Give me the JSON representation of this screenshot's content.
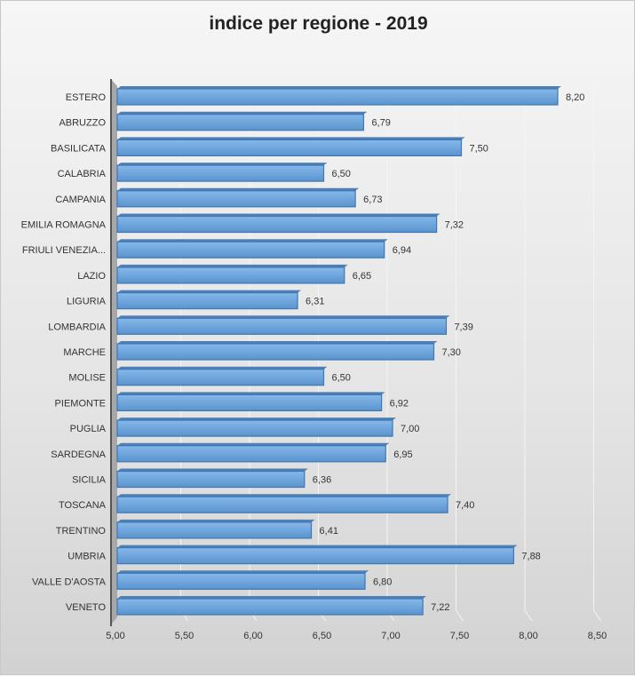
{
  "chart_data": {
    "type": "bar",
    "orientation": "horizontal",
    "title": "indice per regione - 2019",
    "xlabel": "",
    "ylabel": "",
    "xlim": [
      5.0,
      8.5
    ],
    "xticks": [
      "5,00",
      "5,50",
      "6,00",
      "6,50",
      "7,00",
      "7,50",
      "8,00",
      "8,50"
    ],
    "grid": true,
    "categories": [
      "ESTERO",
      "ABRUZZO",
      "BASILICATA",
      "CALABRIA",
      "CAMPANIA",
      "EMILIA ROMAGNA",
      "FRIULI VENEZIA...",
      "LAZIO",
      "LIGURIA",
      "LOMBARDIA",
      "MARCHE",
      "MOLISE",
      "PIEMONTE",
      "PUGLIA",
      "SARDEGNA",
      "SICILIA",
      "TOSCANA",
      "TRENTINO",
      "UMBRIA",
      "VALLE D'AOSTA",
      "VENETO"
    ],
    "values": [
      8.2,
      6.79,
      7.5,
      6.5,
      6.73,
      7.32,
      6.94,
      6.65,
      6.31,
      7.39,
      7.3,
      6.5,
      6.92,
      7.0,
      6.95,
      6.36,
      7.4,
      6.41,
      7.88,
      6.8,
      7.22
    ],
    "value_labels": [
      "8,20",
      "6,79",
      "7,50",
      "6,50",
      "6,73",
      "7,32",
      "6,94",
      "6,65",
      "6,31",
      "7,39",
      "7,30",
      "6,50",
      "6,92",
      "7,00",
      "6,95",
      "6,36",
      "7,40",
      "6,41",
      "7,88",
      "6,80",
      "7,22"
    ],
    "bar_color": "#6fa6dc"
  }
}
